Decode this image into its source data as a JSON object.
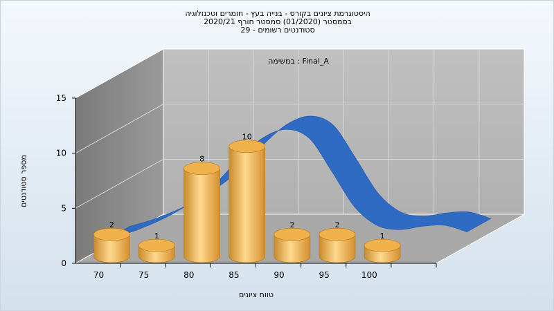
{
  "chart_data": {
    "type": "bar",
    "title_lines": [
      "היסטוגרמת ציונים בקורס - בנייה בעץ - חומרים וטכנולוגיה",
      "בסמסטר  (01/2020)  סמסטר חורף  2020/21",
      "סטודנטים רשומים - 29"
    ],
    "annotation": "במשימה : Final_A",
    "xlabel": "טווח ציונים",
    "ylabel": "מספר סטודנטים",
    "x_ticks": [
      "70",
      "75",
      "80",
      "85",
      "90",
      "95",
      "100"
    ],
    "y_ticks": [
      0,
      5,
      10,
      15
    ],
    "ylim": [
      0,
      15
    ],
    "categories": [
      "70",
      "75",
      "80",
      "85",
      "90",
      "95",
      "100"
    ],
    "values": [
      2,
      1,
      8,
      10,
      2,
      2,
      1
    ],
    "curve": {
      "x": [
        67.5,
        70,
        72.5,
        75,
        77.5,
        80,
        82.5,
        85,
        87.5,
        90,
        92.5,
        95,
        97.5,
        100,
        102.5,
        105,
        107.5
      ],
      "values": [
        0.6,
        1.2,
        2.0,
        3.0,
        4.3,
        6.0,
        8.2,
        9.9,
        10.6,
        9.8,
        6.8,
        3.6,
        1.9,
        1.5,
        1.8,
        1.9,
        1.3
      ]
    },
    "grid": true,
    "colors": {
      "bar": "#e8a542",
      "curve": "#2f6bc2",
      "wall_back": "#b8b8b8",
      "wall_side": "#8a8a8a",
      "floor": "#a9a9a9"
    }
  }
}
